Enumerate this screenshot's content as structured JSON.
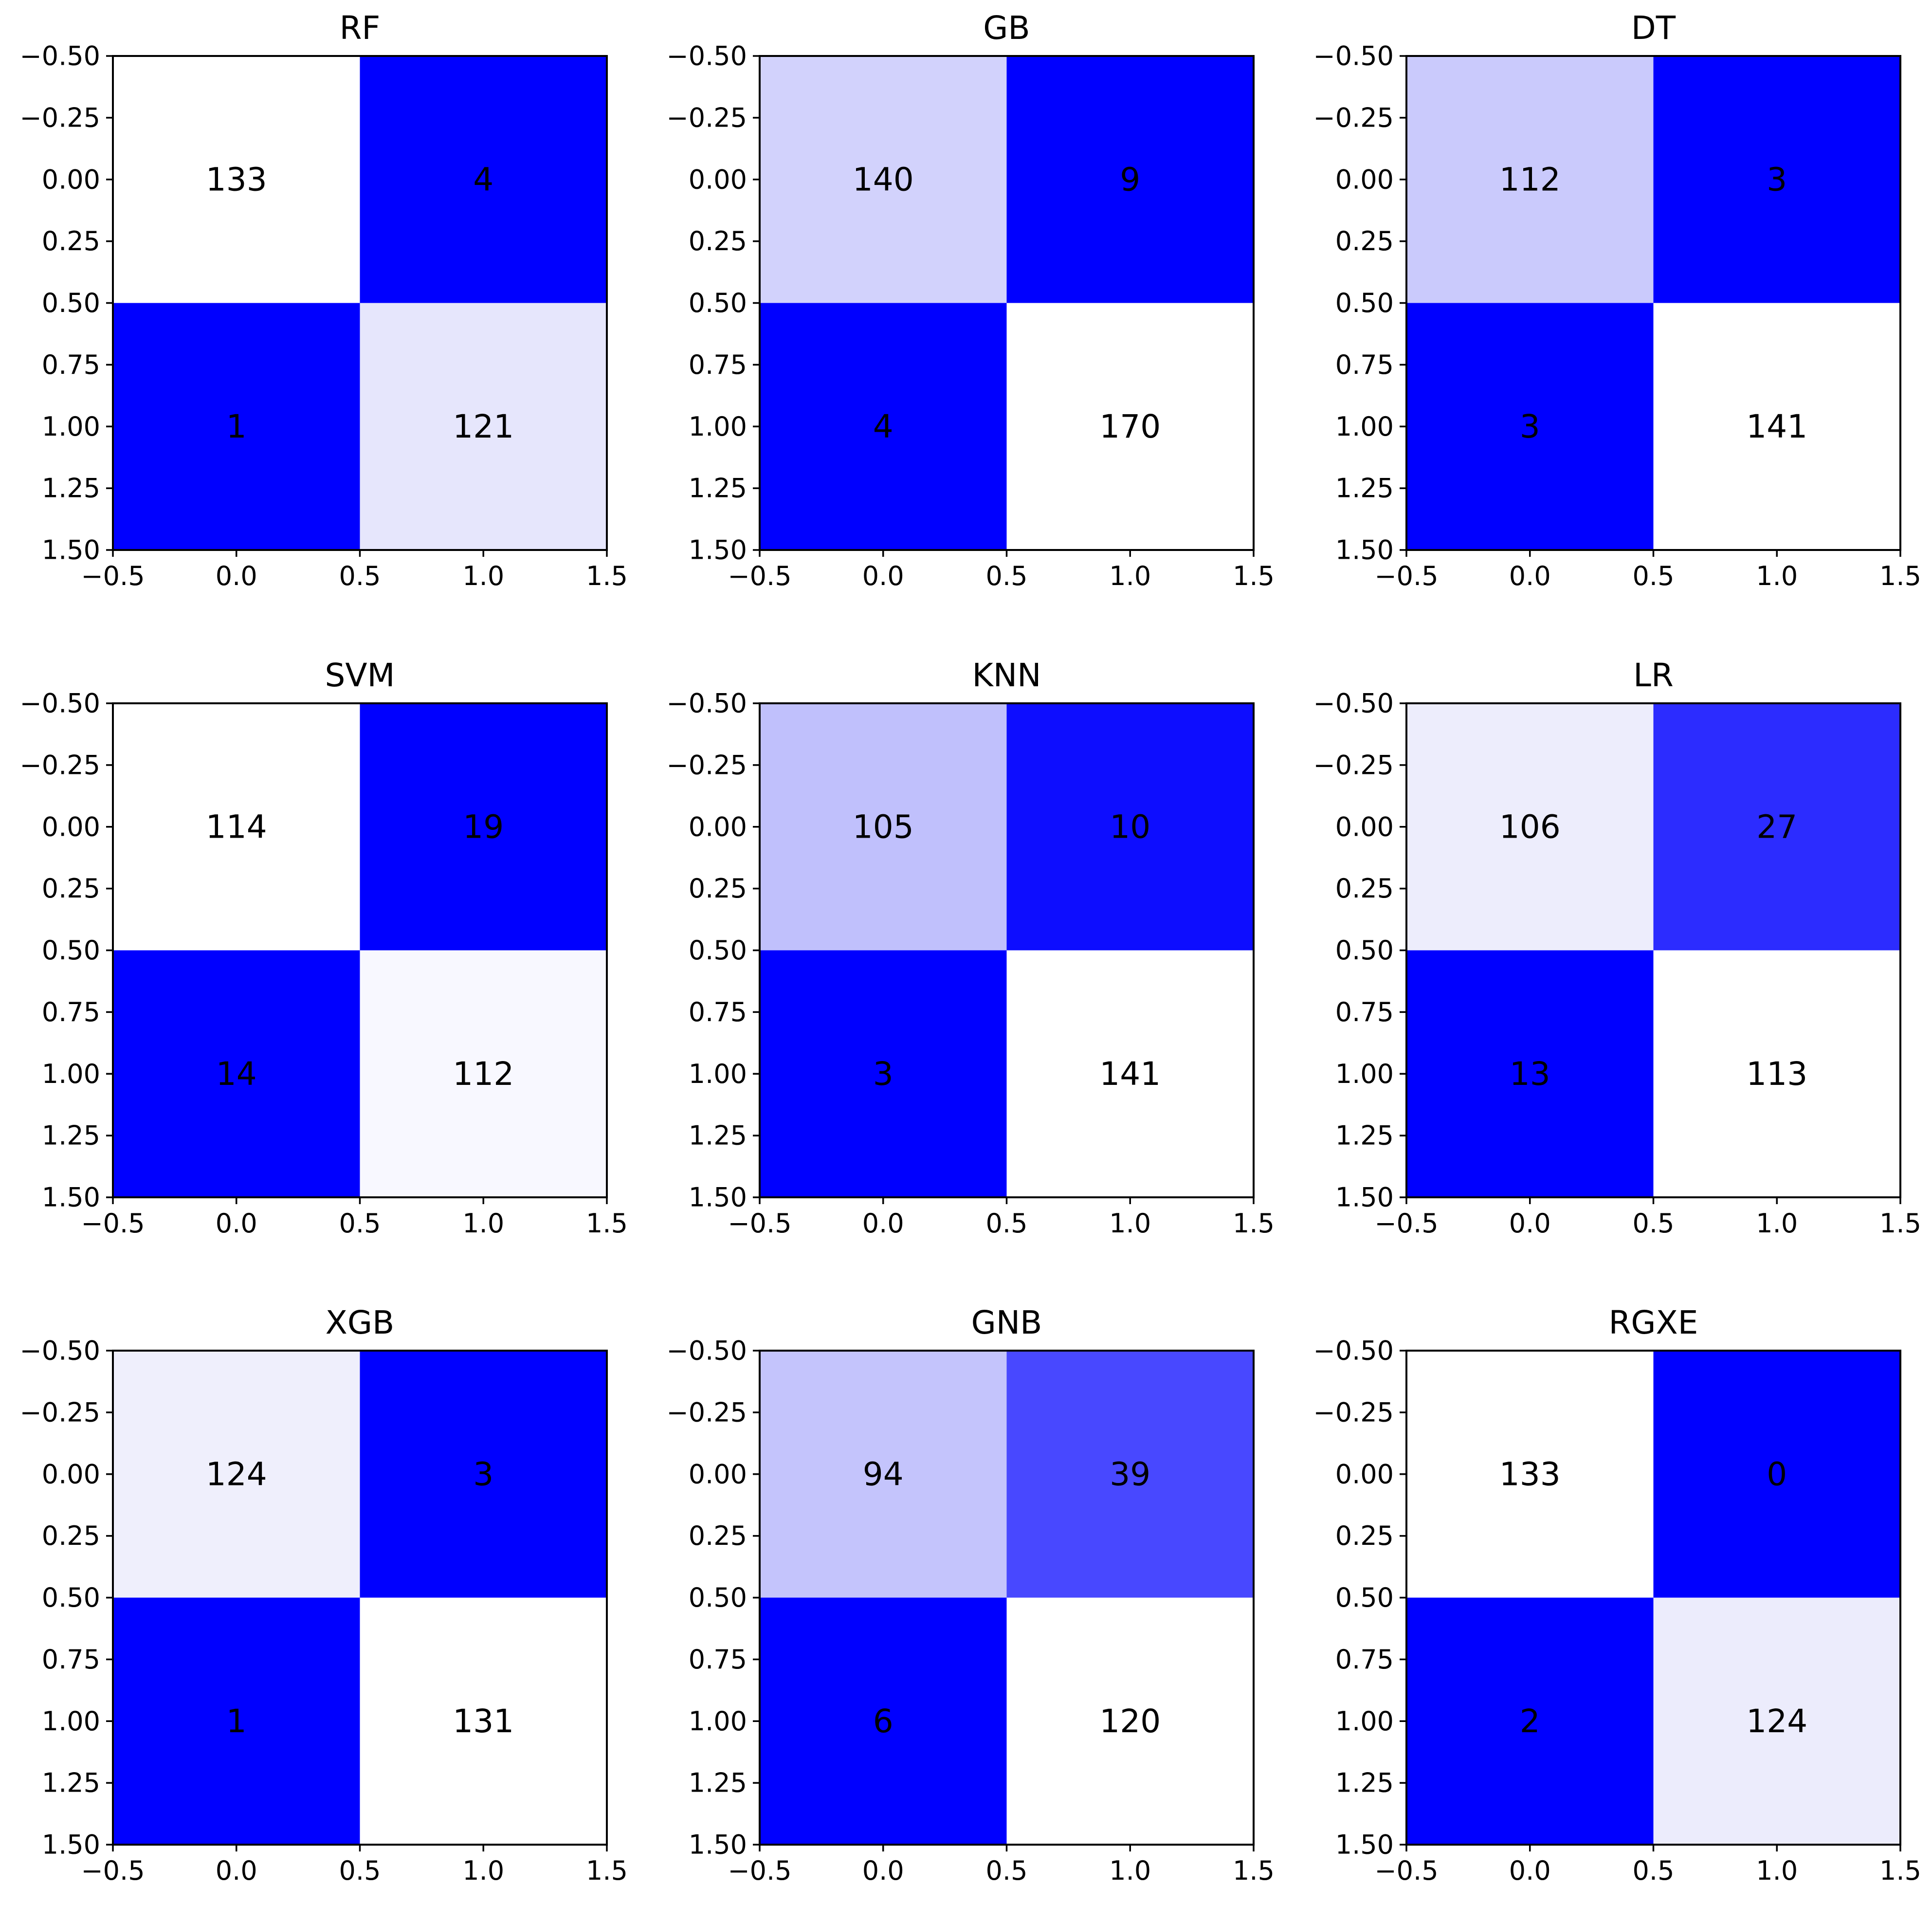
{
  "chart_data": [
    {
      "type": "heatmap",
      "title": "RF",
      "matrix": [
        [
          133,
          4
        ],
        [
          1,
          121
        ]
      ],
      "cell_colors": [
        [
          "#ffffff",
          "#0000ff"
        ],
        [
          "#0000ff",
          "#e6e6fc"
        ]
      ]
    },
    {
      "type": "heatmap",
      "title": "GB",
      "matrix": [
        [
          140,
          9
        ],
        [
          4,
          170
        ]
      ],
      "cell_colors": [
        [
          "#d2d2fc",
          "#0000ff"
        ],
        [
          "#0000ff",
          "#ffffff"
        ]
      ]
    },
    {
      "type": "heatmap",
      "title": "DT",
      "matrix": [
        [
          112,
          3
        ],
        [
          3,
          141
        ]
      ],
      "cell_colors": [
        [
          "#cacafc",
          "#0000ff"
        ],
        [
          "#0000ff",
          "#ffffff"
        ]
      ]
    },
    {
      "type": "heatmap",
      "title": "SVM",
      "matrix": [
        [
          114,
          19
        ],
        [
          14,
          112
        ]
      ],
      "cell_colors": [
        [
          "#ffffff",
          "#0000ff"
        ],
        [
          "#0000ff",
          "#f8f8ff"
        ]
      ]
    },
    {
      "type": "heatmap",
      "title": "KNN",
      "matrix": [
        [
          105,
          10
        ],
        [
          3,
          141
        ]
      ],
      "cell_colors": [
        [
          "#c0c0fc",
          "#0d0dff"
        ],
        [
          "#0000ff",
          "#ffffff"
        ]
      ]
    },
    {
      "type": "heatmap",
      "title": "LR",
      "matrix": [
        [
          106,
          27
        ],
        [
          13,
          113
        ]
      ],
      "cell_colors": [
        [
          "#ededfc",
          "#2c2cff"
        ],
        [
          "#0000ff",
          "#ffffff"
        ]
      ]
    },
    {
      "type": "heatmap",
      "title": "XGB",
      "matrix": [
        [
          124,
          3
        ],
        [
          1,
          131
        ]
      ],
      "cell_colors": [
        [
          "#efeffc",
          "#0000ff"
        ],
        [
          "#0000ff",
          "#ffffff"
        ]
      ]
    },
    {
      "type": "heatmap",
      "title": "GNB",
      "matrix": [
        [
          94,
          39
        ],
        [
          6,
          120
        ]
      ],
      "cell_colors": [
        [
          "#c4c4fc",
          "#4848ff"
        ],
        [
          "#0000ff",
          "#ffffff"
        ]
      ]
    },
    {
      "type": "heatmap",
      "title": "RGXE",
      "matrix": [
        [
          133,
          0
        ],
        [
          2,
          124
        ]
      ],
      "cell_colors": [
        [
          "#ffffff",
          "#0000ff"
        ],
        [
          "#0000ff",
          "#ececfc"
        ]
      ]
    }
  ],
  "axes": {
    "xlim": [
      -0.5,
      1.5
    ],
    "ylim": [
      1.5,
      -0.5
    ],
    "x_ticks": [
      "−0.5",
      "0.0",
      "0.5",
      "1.0",
      "1.5"
    ],
    "x_tick_values": [
      -0.5,
      0.0,
      0.5,
      1.0,
      1.5
    ],
    "y_ticks": [
      "−0.50",
      "−0.25",
      "0.00",
      "0.25",
      "0.50",
      "0.75",
      "1.00",
      "1.25",
      "1.50"
    ],
    "y_tick_values": [
      -0.5,
      -0.25,
      0.0,
      0.25,
      0.5,
      0.75,
      1.0,
      1.25,
      1.5
    ]
  },
  "colors": {
    "high": "#ffffff",
    "low": "#0000ff",
    "text": "#000000"
  }
}
